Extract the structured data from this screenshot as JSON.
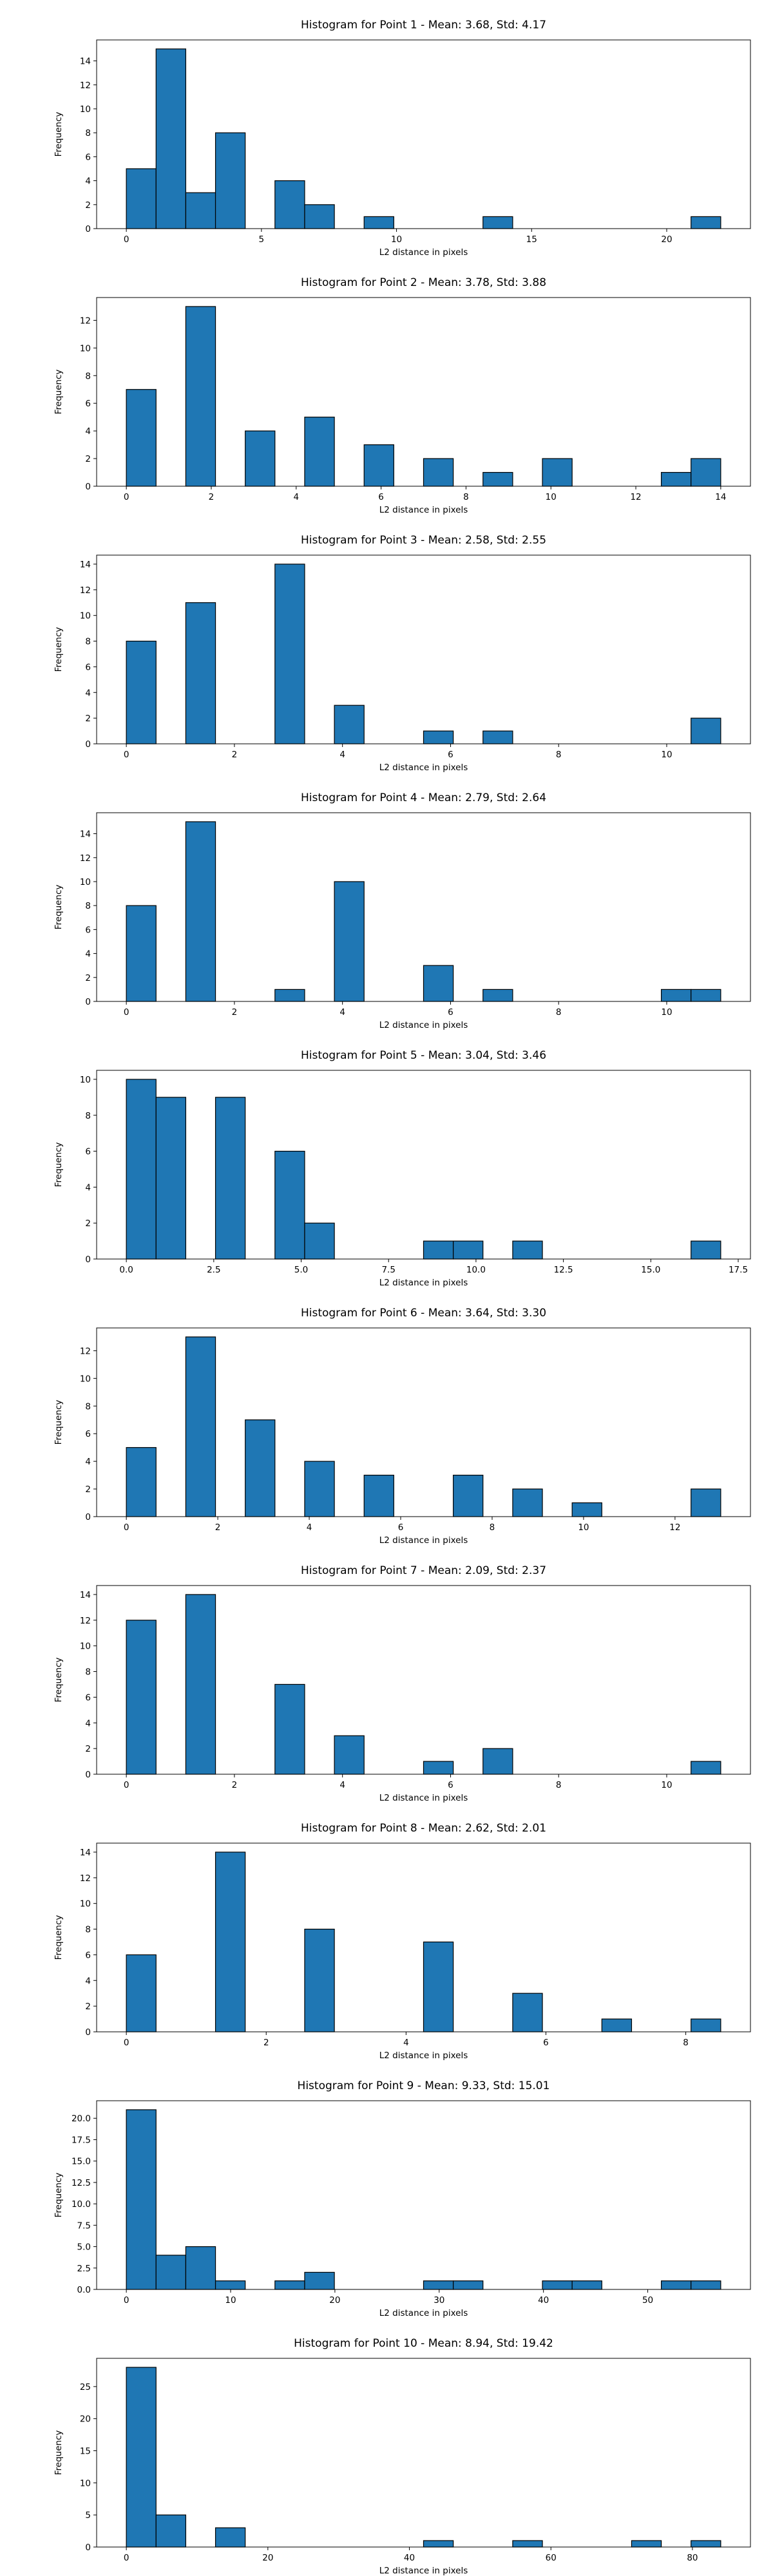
{
  "chart_data": [
    {
      "type": "bar",
      "title": "Histogram for Point 1 - Mean: 3.68, Std: 4.17",
      "xlabel": "L2 distance in pixels",
      "ylabel": "Frequency",
      "xlim": [
        -1.1,
        23.1
      ],
      "ylim": [
        0,
        15.75
      ],
      "xticks": [
        0,
        5,
        10,
        15,
        20
      ],
      "xtick_labels": [
        "0",
        "5",
        "10",
        "15",
        "20"
      ],
      "yticks": [
        0,
        2,
        4,
        6,
        8,
        10,
        12,
        14
      ],
      "ytick_labels": [
        "0",
        "2",
        "4",
        "6",
        "8",
        "10",
        "12",
        "14"
      ],
      "bin_edges": [
        0,
        1.1,
        2.2,
        3.3,
        4.4,
        5.5,
        6.6,
        7.7,
        8.8,
        9.9,
        11.0,
        12.1,
        13.2,
        14.3,
        15.4,
        16.5,
        17.6,
        18.7,
        19.8,
        20.9,
        22.0
      ],
      "counts": [
        5,
        15,
        3,
        8,
        0,
        4,
        2,
        0,
        1,
        0,
        0,
        0,
        1,
        0,
        0,
        0,
        0,
        0,
        0,
        1
      ]
    },
    {
      "type": "bar",
      "title": "Histogram for Point 2 - Mean: 3.78, Std: 3.88",
      "xlabel": "L2 distance in pixels",
      "ylabel": "Frequency",
      "xlim": [
        -0.7,
        14.7
      ],
      "ylim": [
        0,
        13.65
      ],
      "xticks": [
        0,
        2,
        4,
        6,
        8,
        10,
        12,
        14
      ],
      "xtick_labels": [
        "0",
        "2",
        "4",
        "6",
        "8",
        "10",
        "12",
        "14"
      ],
      "yticks": [
        0,
        2,
        4,
        6,
        8,
        10,
        12
      ],
      "ytick_labels": [
        "0",
        "2",
        "4",
        "6",
        "8",
        "10",
        "12"
      ],
      "bin_edges": [
        0,
        0.7,
        1.4,
        2.1,
        2.8,
        3.5,
        4.2,
        4.9,
        5.6,
        6.3,
        7.0,
        7.7,
        8.4,
        9.1,
        9.8,
        10.5,
        11.2,
        11.9,
        12.6,
        13.3,
        14.0
      ],
      "counts": [
        7,
        0,
        13,
        0,
        4,
        0,
        5,
        0,
        3,
        0,
        2,
        0,
        1,
        0,
        2,
        0,
        0,
        0,
        1,
        2
      ]
    },
    {
      "type": "bar",
      "title": "Histogram for Point 3 - Mean: 2.58, Std: 2.55",
      "xlabel": "L2 distance in pixels",
      "ylabel": "Frequency",
      "xlim": [
        -0.55,
        11.55
      ],
      "ylim": [
        0,
        14.7
      ],
      "xticks": [
        0,
        2,
        4,
        6,
        8,
        10
      ],
      "xtick_labels": [
        "0",
        "2",
        "4",
        "6",
        "8",
        "10"
      ],
      "yticks": [
        0,
        2,
        4,
        6,
        8,
        10,
        12,
        14
      ],
      "ytick_labels": [
        "0",
        "2",
        "4",
        "6",
        "8",
        "10",
        "12",
        "14"
      ],
      "bin_edges": [
        0,
        0.55,
        1.1,
        1.65,
        2.2,
        2.75,
        3.3,
        3.85,
        4.4,
        4.95,
        5.5,
        6.05,
        6.6,
        7.15,
        7.7,
        8.25,
        8.8,
        9.35,
        9.9,
        10.45,
        11.0
      ],
      "counts": [
        8,
        0,
        11,
        0,
        0,
        14,
        0,
        3,
        0,
        0,
        1,
        0,
        1,
        0,
        0,
        0,
        0,
        0,
        0,
        2
      ]
    },
    {
      "type": "bar",
      "title": "Histogram for Point 4 - Mean: 2.79, Std: 2.64",
      "xlabel": "L2 distance in pixels",
      "ylabel": "Frequency",
      "xlim": [
        -0.55,
        11.55
      ],
      "ylim": [
        0,
        15.75
      ],
      "xticks": [
        0,
        2,
        4,
        6,
        8,
        10
      ],
      "xtick_labels": [
        "0",
        "2",
        "4",
        "6",
        "8",
        "10"
      ],
      "yticks": [
        0,
        2,
        4,
        6,
        8,
        10,
        12,
        14
      ],
      "ytick_labels": [
        "0",
        "2",
        "4",
        "6",
        "8",
        "10",
        "12",
        "14"
      ],
      "bin_edges": [
        0,
        0.55,
        1.1,
        1.65,
        2.2,
        2.75,
        3.3,
        3.85,
        4.4,
        4.95,
        5.5,
        6.05,
        6.6,
        7.15,
        7.7,
        8.25,
        8.8,
        9.35,
        9.9,
        10.45,
        11.0
      ],
      "counts": [
        8,
        0,
        15,
        0,
        0,
        1,
        0,
        10,
        0,
        0,
        3,
        0,
        1,
        0,
        0,
        0,
        0,
        0,
        1,
        1
      ]
    },
    {
      "type": "bar",
      "title": "Histogram for Point 5 - Mean: 3.04, Std: 3.46",
      "xlabel": "L2 distance in pixels",
      "ylabel": "Frequency",
      "xlim": [
        -0.85,
        17.85
      ],
      "ylim": [
        0,
        10.5
      ],
      "xticks": [
        0,
        2.5,
        5,
        7.5,
        10,
        12.5,
        15,
        17.5
      ],
      "xtick_labels": [
        "0.0",
        "2.5",
        "5.0",
        "7.5",
        "10.0",
        "12.5",
        "15.0",
        "17.5"
      ],
      "yticks": [
        0,
        2,
        4,
        6,
        8,
        10
      ],
      "ytick_labels": [
        "0",
        "2",
        "4",
        "6",
        "8",
        "10"
      ],
      "bin_edges": [
        0,
        0.85,
        1.7,
        2.55,
        3.4,
        4.25,
        5.1,
        5.95,
        6.8,
        7.65,
        8.5,
        9.35,
        10.2,
        11.05,
        11.9,
        12.75,
        13.6,
        14.45,
        15.3,
        16.15,
        17.0
      ],
      "counts": [
        10,
        9,
        0,
        9,
        0,
        6,
        2,
        0,
        0,
        0,
        1,
        1,
        0,
        1,
        0,
        0,
        0,
        0,
        0,
        1
      ]
    },
    {
      "type": "bar",
      "title": "Histogram for Point 6 - Mean: 3.64, Std: 3.30",
      "xlabel": "L2 distance in pixels",
      "ylabel": "Frequency",
      "xlim": [
        -0.65,
        13.65
      ],
      "ylim": [
        0,
        13.65
      ],
      "xticks": [
        0,
        2,
        4,
        6,
        8,
        10,
        12
      ],
      "xtick_labels": [
        "0",
        "2",
        "4",
        "6",
        "8",
        "10",
        "12"
      ],
      "yticks": [
        0,
        2,
        4,
        6,
        8,
        10,
        12
      ],
      "ytick_labels": [
        "0",
        "2",
        "4",
        "6",
        "8",
        "10",
        "12"
      ],
      "bin_edges": [
        0,
        0.65,
        1.3,
        1.95,
        2.6,
        3.25,
        3.9,
        4.55,
        5.2,
        5.85,
        6.5,
        7.15,
        7.8,
        8.45,
        9.1,
        9.75,
        10.4,
        11.05,
        11.7,
        12.35,
        13.0
      ],
      "counts": [
        5,
        0,
        13,
        0,
        7,
        0,
        4,
        0,
        3,
        0,
        0,
        3,
        0,
        2,
        0,
        1,
        0,
        0,
        0,
        2
      ]
    },
    {
      "type": "bar",
      "title": "Histogram for Point 7 - Mean: 2.09, Std: 2.37",
      "xlabel": "L2 distance in pixels",
      "ylabel": "Frequency",
      "xlim": [
        -0.55,
        11.55
      ],
      "ylim": [
        0,
        14.7
      ],
      "xticks": [
        0,
        2,
        4,
        6,
        8,
        10
      ],
      "xtick_labels": [
        "0",
        "2",
        "4",
        "6",
        "8",
        "10"
      ],
      "yticks": [
        0,
        2,
        4,
        6,
        8,
        10,
        12,
        14
      ],
      "ytick_labels": [
        "0",
        "2",
        "4",
        "6",
        "8",
        "10",
        "12",
        "14"
      ],
      "bin_edges": [
        0,
        0.55,
        1.1,
        1.65,
        2.2,
        2.75,
        3.3,
        3.85,
        4.4,
        4.95,
        5.5,
        6.05,
        6.6,
        7.15,
        7.7,
        8.25,
        8.8,
        9.35,
        9.9,
        10.45,
        11.0
      ],
      "counts": [
        12,
        0,
        14,
        0,
        0,
        7,
        0,
        3,
        0,
        0,
        1,
        0,
        2,
        0,
        0,
        0,
        0,
        0,
        0,
        1
      ]
    },
    {
      "type": "bar",
      "title": "Histogram for Point 8 - Mean: 2.62, Std: 2.01",
      "xlabel": "L2 distance in pixels",
      "ylabel": "Frequency",
      "xlim": [
        -0.425,
        8.925
      ],
      "ylim": [
        0,
        14.7
      ],
      "xticks": [
        0,
        2,
        4,
        6,
        8
      ],
      "xtick_labels": [
        "0",
        "2",
        "4",
        "6",
        "8"
      ],
      "yticks": [
        0,
        2,
        4,
        6,
        8,
        10,
        12,
        14
      ],
      "ytick_labels": [
        "0",
        "2",
        "4",
        "6",
        "8",
        "10",
        "12",
        "14"
      ],
      "bin_edges": [
        0,
        0.425,
        0.85,
        1.275,
        1.7,
        2.125,
        2.55,
        2.975,
        3.4,
        3.825,
        4.25,
        4.675,
        5.1,
        5.525,
        5.95,
        6.375,
        6.8,
        7.225,
        7.65,
        8.075,
        8.5
      ],
      "counts": [
        6,
        0,
        0,
        14,
        0,
        0,
        8,
        0,
        0,
        0,
        7,
        0,
        0,
        3,
        0,
        0,
        1,
        0,
        0,
        1
      ]
    },
    {
      "type": "bar",
      "title": "Histogram for Point 9 - Mean: 9.33, Std: 15.01",
      "xlabel": "L2 distance in pixels",
      "ylabel": "Frequency",
      "xlim": [
        -2.85,
        59.85
      ],
      "ylim": [
        0,
        22.05
      ],
      "xticks": [
        0,
        10,
        20,
        30,
        40,
        50
      ],
      "xtick_labels": [
        "0",
        "10",
        "20",
        "30",
        "40",
        "50"
      ],
      "yticks": [
        0,
        2.5,
        5,
        7.5,
        10,
        12.5,
        15,
        17.5,
        20
      ],
      "ytick_labels": [
        "0.0",
        "2.5",
        "5.0",
        "7.5",
        "10.0",
        "12.5",
        "15.0",
        "17.5",
        "20.0"
      ],
      "bin_edges": [
        0,
        2.85,
        5.7,
        8.55,
        11.4,
        14.25,
        17.1,
        19.95,
        22.8,
        25.65,
        28.5,
        31.35,
        34.2,
        37.05,
        39.9,
        42.75,
        45.6,
        48.45,
        51.3,
        54.15,
        57.0
      ],
      "counts": [
        21,
        4,
        5,
        1,
        0,
        1,
        2,
        0,
        0,
        0,
        1,
        1,
        0,
        0,
        1,
        1,
        0,
        0,
        1,
        1
      ]
    },
    {
      "type": "bar",
      "title": "Histogram for Point 10 - Mean: 8.94, Std: 19.42",
      "xlabel": "L2 distance in pixels",
      "ylabel": "Frequency",
      "xlim": [
        -4.2,
        88.2
      ],
      "ylim": [
        0,
        29.4
      ],
      "xticks": [
        0,
        20,
        40,
        60,
        80
      ],
      "xtick_labels": [
        "0",
        "20",
        "40",
        "60",
        "80"
      ],
      "yticks": [
        0,
        5,
        10,
        15,
        20,
        25
      ],
      "ytick_labels": [
        "0",
        "5",
        "10",
        "15",
        "20",
        "25"
      ],
      "bin_edges": [
        0,
        4.2,
        8.4,
        12.6,
        16.8,
        21.0,
        25.2,
        29.4,
        33.6,
        37.8,
        42.0,
        46.2,
        50.4,
        54.6,
        58.8,
        63.0,
        67.2,
        71.4,
        75.6,
        79.8,
        84.0
      ],
      "counts": [
        28,
        5,
        0,
        3,
        0,
        0,
        0,
        0,
        0,
        0,
        1,
        0,
        0,
        1,
        0,
        0,
        0,
        1,
        0,
        1
      ]
    }
  ]
}
